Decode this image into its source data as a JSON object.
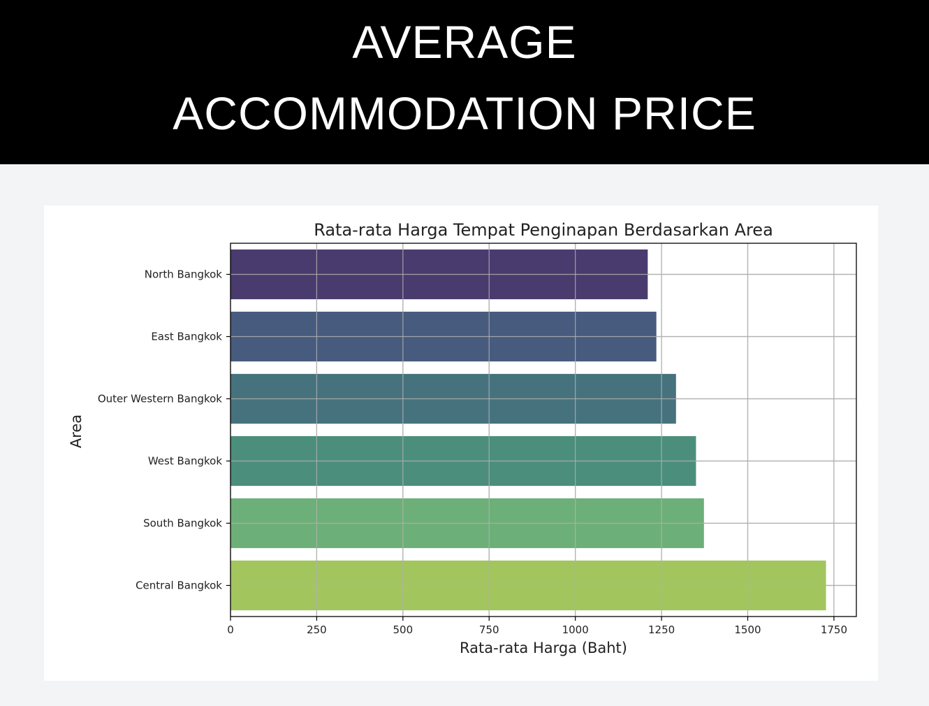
{
  "header": {
    "line1": "AVERAGE",
    "line2": "ACCOMMODATION PRICE"
  },
  "chart_data": {
    "type": "bar",
    "orientation": "horizontal",
    "title": "Rata-rata Harga Tempat Penginapan Berdasarkan Area",
    "xlabel": "Rata-rata Harga (Baht)",
    "ylabel": "Area",
    "categories": [
      "North Bangkok",
      "East Bangkok",
      "Outer Western Bangkok",
      "West Bangkok",
      "South Bangkok",
      "Central Bangkok"
    ],
    "values": [
      1210,
      1235,
      1292,
      1350,
      1373,
      1727
    ],
    "colors": [
      "#4a3b6e",
      "#475b7e",
      "#46727e",
      "#4b8e7b",
      "#6daf78",
      "#a2c55e"
    ],
    "xticks": [
      0,
      250,
      500,
      750,
      1000,
      1250,
      1500,
      1750
    ],
    "xlim": [
      0,
      1815
    ],
    "grid": true
  }
}
